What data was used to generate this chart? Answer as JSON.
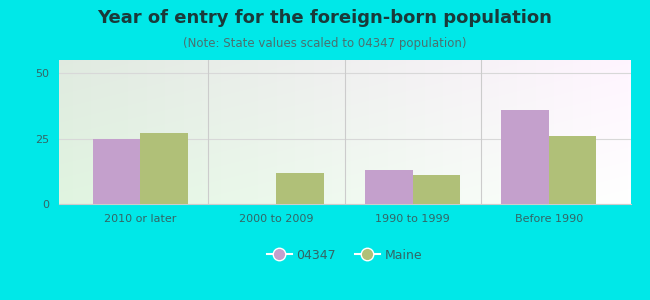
{
  "title": "Year of entry for the foreign-born population",
  "subtitle": "(Note: State values scaled to 04347 population)",
  "categories": [
    "2010 or later",
    "2000 to 2009",
    "1990 to 1999",
    "Before 1990"
  ],
  "values_04347": [
    25,
    0,
    13,
    36
  ],
  "values_maine": [
    27,
    12,
    11,
    26
  ],
  "bar_color_04347": "#c4a0cc",
  "bar_color_maine": "#b0c078",
  "background_color": "#00e8e8",
  "ylim": [
    0,
    55
  ],
  "yticks": [
    0,
    25,
    50
  ],
  "bar_width": 0.35,
  "legend_label_1": "04347",
  "legend_label_2": "Maine",
  "title_fontsize": 13,
  "subtitle_fontsize": 8.5,
  "tick_fontsize": 8,
  "legend_fontsize": 9,
  "title_color": "#1a3a3a",
  "subtitle_color": "#4a7070",
  "tick_color": "#336666",
  "grid_color": "#d8d8d8",
  "spine_color": "#cccccc"
}
